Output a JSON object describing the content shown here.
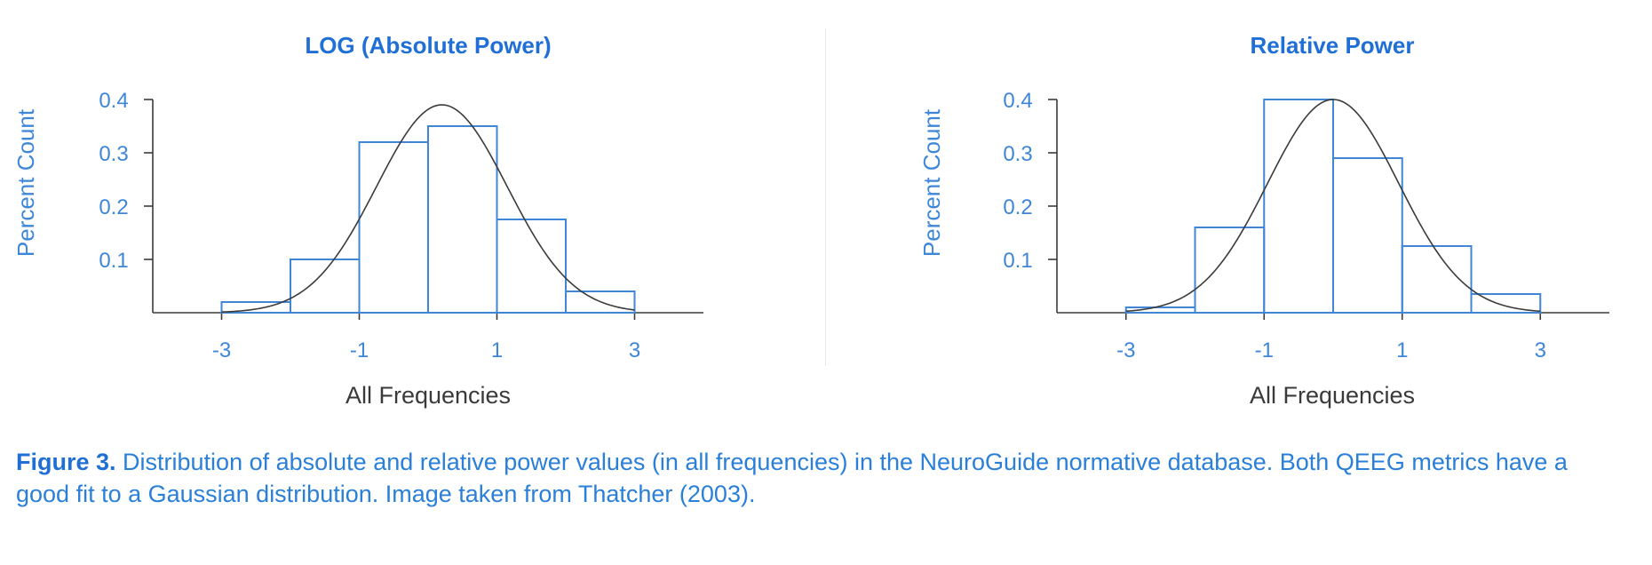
{
  "chart_data": [
    {
      "type": "bar",
      "title": "LOG (Absolute Power)",
      "xlabel": "All Frequencies",
      "ylabel": "Percent Count",
      "xlim": [
        -4,
        4
      ],
      "ylim": [
        0,
        0.4
      ],
      "xticks": [
        "-3",
        "-1",
        "1",
        "3"
      ],
      "yticks": [
        "0.1",
        "0.2",
        "0.3",
        "0.4"
      ],
      "bin_edges": [
        -3,
        -2,
        -1,
        0,
        1,
        2,
        3
      ],
      "values": [
        0.02,
        0.1,
        0.32,
        0.35,
        0.175,
        0.04
      ],
      "curve": {
        "mean": 0.2,
        "peak": 0.39,
        "sd": 0.95
      }
    },
    {
      "type": "bar",
      "title": "Relative Power",
      "xlabel": "All Frequencies",
      "ylabel": "Percent Count",
      "xlim": [
        -4,
        4
      ],
      "ylim": [
        0,
        0.4
      ],
      "xticks": [
        "-3",
        "-1",
        "1",
        "3"
      ],
      "yticks": [
        "0.1",
        "0.2",
        "0.3",
        "0.4"
      ],
      "bin_edges": [
        -3,
        -2,
        -1,
        0,
        1,
        2,
        3
      ],
      "values": [
        0.01,
        0.16,
        0.4,
        0.29,
        0.125,
        0.035
      ],
      "curve": {
        "mean": 0.0,
        "peak": 0.4,
        "sd": 0.95
      }
    }
  ],
  "caption": {
    "label": "Figure 3.",
    "text": " Distribution of absolute and relative power values (in all frequencies) in the NeuroGuide normative database. Both QEEG metrics have a good fit to a Gaussian distribution. Image taken from Thatcher (2003)."
  },
  "colors": {
    "title": "#1f6fd6",
    "tick_label": "#3d86d8",
    "bar_stroke": "#3f87d6",
    "curve": "#3b3b3b",
    "axis": "#3b3b3b",
    "xlabel": "#3a3a3a"
  }
}
